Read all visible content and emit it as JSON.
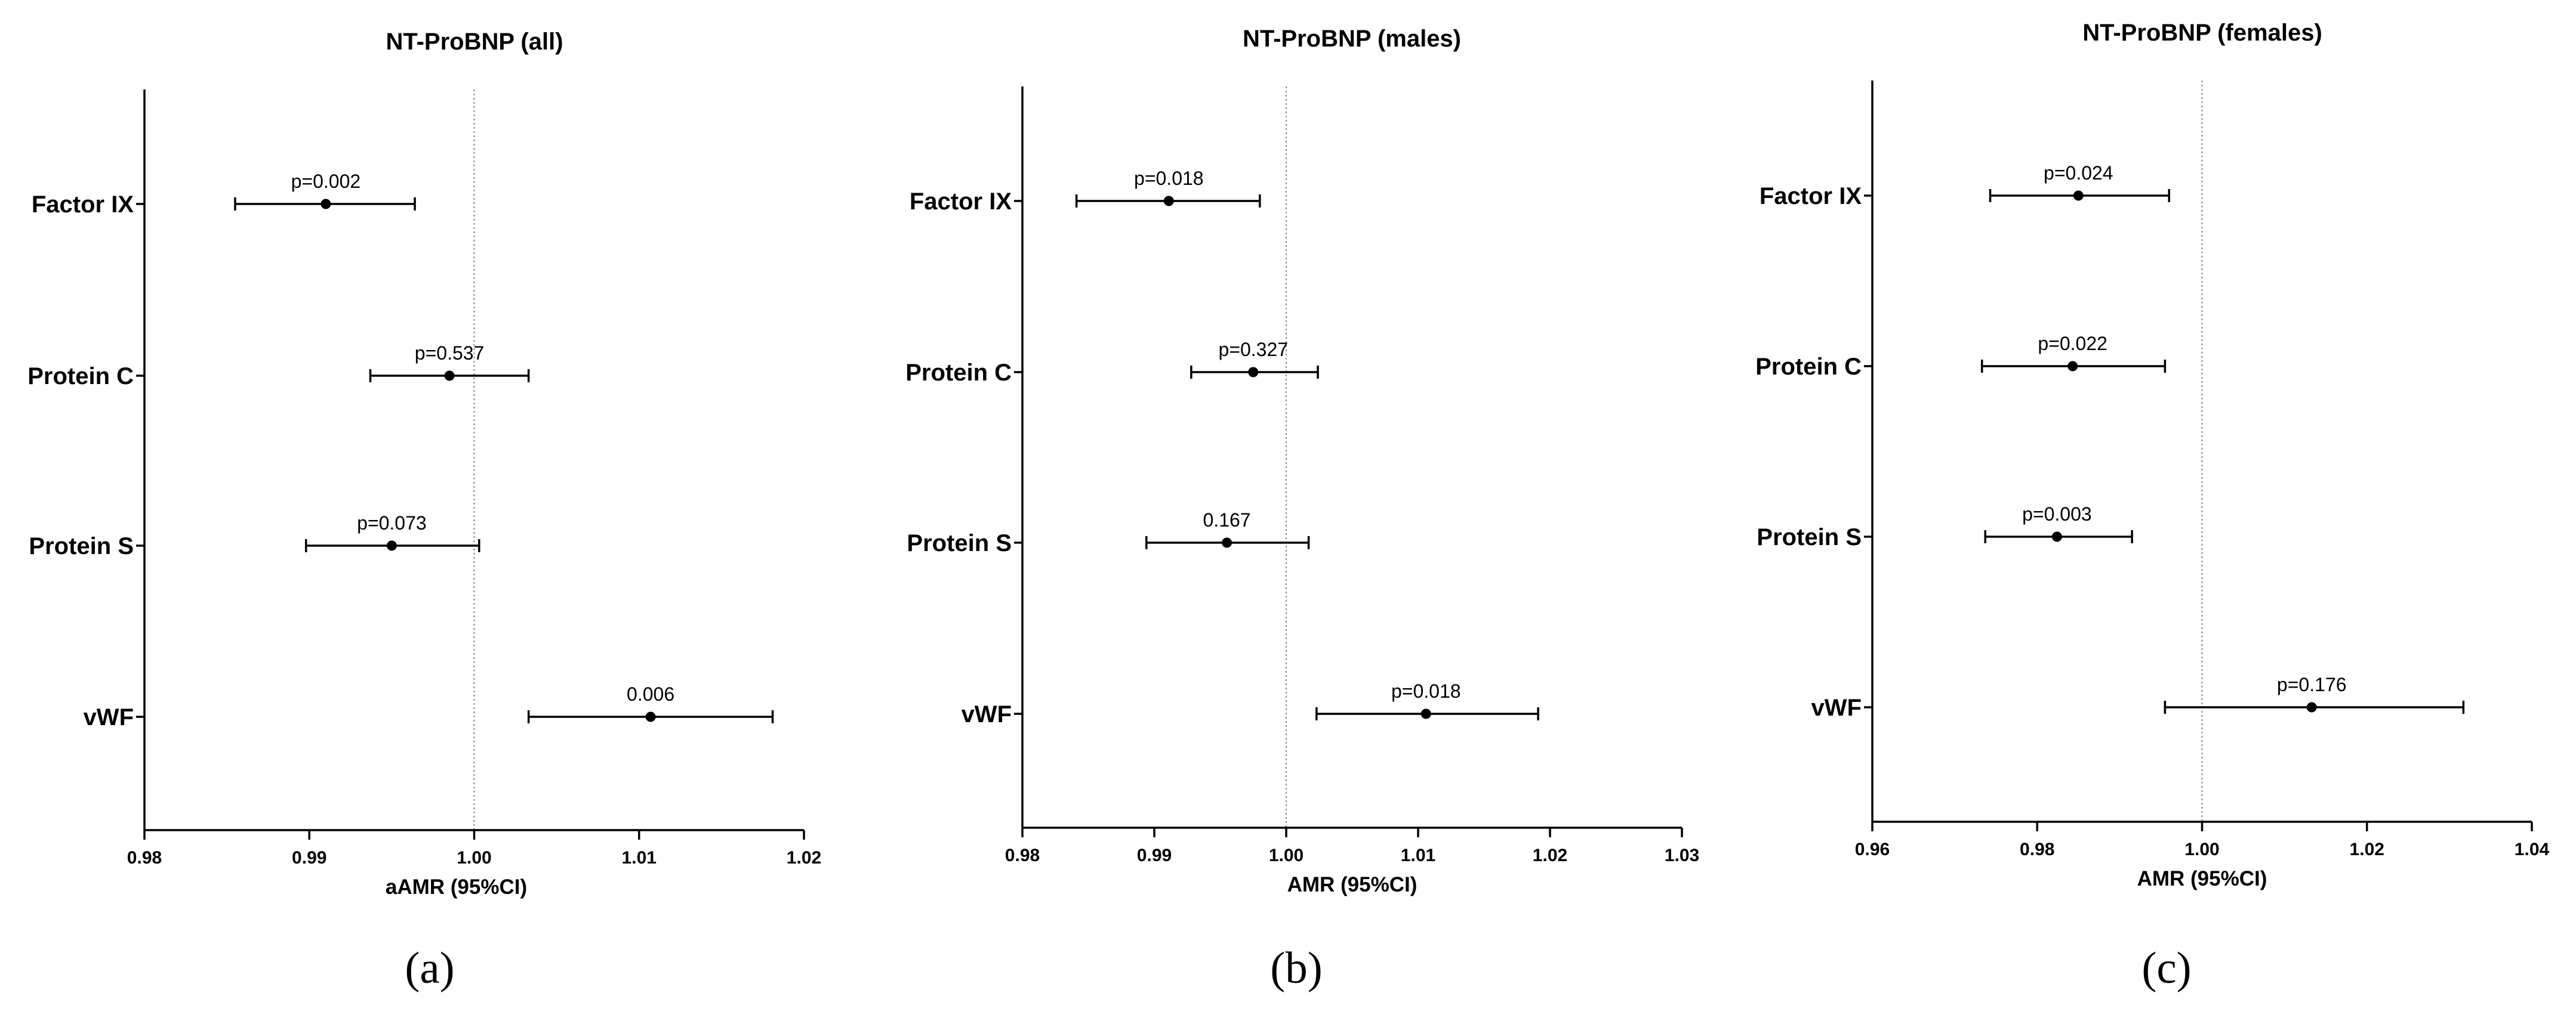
{
  "figure": {
    "panel_letters": [
      "(a)",
      "(b)",
      "(c)"
    ]
  },
  "chart_data": [
    {
      "type": "forest",
      "title": "NT-ProBNP (all)",
      "xlabel": "aAMR (95%CI)",
      "xlim": [
        0.98,
        1.02
      ],
      "xticks": [
        "0.98",
        "0.99",
        "1.00",
        "1.01",
        "1.02"
      ],
      "reference_line": 1.0,
      "categories": [
        "Factor IX",
        "Protein C",
        "Protein S",
        "vWF"
      ],
      "estimates": [
        0.991,
        0.9985,
        0.995,
        1.0107
      ],
      "lower": [
        0.9855,
        0.9937,
        0.9898,
        1.0033
      ],
      "upper": [
        0.9964,
        1.0033,
        1.0003,
        1.0181
      ],
      "p_labels": [
        "p=0.002",
        "p=0.537",
        "p=0.073",
        "0.006"
      ]
    },
    {
      "type": "forest",
      "title": "NT-ProBNP  (males)",
      "xlabel": "AMR (95%CI)",
      "xlim": [
        0.98,
        1.03
      ],
      "xticks": [
        "0.98",
        "0.99",
        "1.00",
        "1.01",
        "1.02",
        "1.03"
      ],
      "reference_line": 1.0,
      "categories": [
        "Factor IX",
        "Protein C",
        "Protein S",
        "vWF"
      ],
      "estimates": [
        0.9911,
        0.9975,
        0.9955,
        1.0106
      ],
      "lower": [
        0.9841,
        0.9928,
        0.9894,
        1.0023
      ],
      "upper": [
        0.998,
        1.0024,
        1.0017,
        1.0191
      ],
      "p_labels": [
        "p=0.018",
        "p=0.327",
        "0.167",
        "p=0.018"
      ]
    },
    {
      "type": "forest",
      "title": "NT-ProBNP  (females)",
      "xlabel": "AMR (95%CI)",
      "xlim": [
        0.96,
        1.04
      ],
      "xticks": [
        "0.96",
        "0.98",
        "1.00",
        "1.02",
        "1.04"
      ],
      "reference_line": 1.0,
      "categories": [
        "Factor IX",
        "Protein C",
        "Protein S",
        "vWF"
      ],
      "estimates": [
        0.985,
        0.9843,
        0.9824,
        1.0133
      ],
      "lower": [
        0.9743,
        0.9733,
        0.9737,
        0.9955
      ],
      "upper": [
        0.996,
        0.9955,
        0.9915,
        1.0317
      ],
      "p_labels": [
        "p=0.024",
        "p=0.022",
        "p=0.003",
        "p=0.176"
      ]
    }
  ]
}
